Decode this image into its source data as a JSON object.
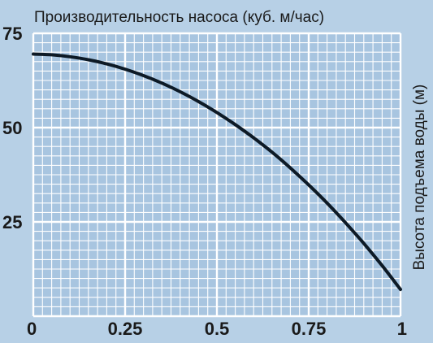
{
  "chart_data": {
    "type": "line",
    "title": "Производительность насоса (куб. м/час)",
    "xlabel": "",
    "ylabel": "Высота подъема воды (м)",
    "xlim": [
      0,
      1
    ],
    "ylim": [
      0,
      75
    ],
    "x_ticks": [
      "0",
      "0.25",
      "0.5",
      "0.75",
      "1"
    ],
    "y_ticks": [
      "75",
      "50",
      "25"
    ],
    "grid": true,
    "series": [
      {
        "name": "",
        "x": [
          0,
          0.05,
          0.1,
          0.15,
          0.2,
          0.25,
          0.3,
          0.35,
          0.4,
          0.45,
          0.5,
          0.55,
          0.6,
          0.65,
          0.7,
          0.75,
          0.8,
          0.85,
          0.9,
          0.95,
          1.0
        ],
        "y": [
          69.5,
          69.3,
          68.8,
          68.0,
          66.9,
          65.5,
          63.8,
          61.8,
          59.5,
          56.9,
          54.0,
          50.8,
          47.3,
          43.5,
          39.3,
          34.8,
          30.0,
          24.8,
          19.3,
          13.4,
          7.1
        ]
      }
    ]
  },
  "colors": {
    "background": "#b7d0e6",
    "plot_area": "#a8c5e0",
    "grid": "#ffffff",
    "line": "#0d1a26"
  }
}
